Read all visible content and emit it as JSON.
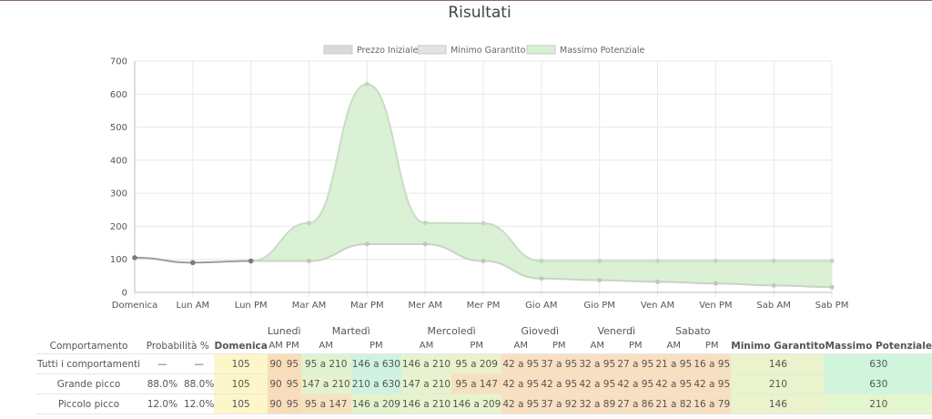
{
  "title": "Risultati",
  "legend": [
    {
      "label": "Prezzo Iniziale",
      "color": "#d9d9d9"
    },
    {
      "label": "Minimo Garantito",
      "color": "#e3e3e3"
    },
    {
      "label": "Massimo Potenziale",
      "color": "#d8f0d3"
    }
  ],
  "chart_data": {
    "type": "area",
    "x": [
      "Domenica",
      "Lun AM",
      "Lun PM",
      "Mar AM",
      "Mar PM",
      "Mer AM",
      "Mer PM",
      "Gio AM",
      "Gio PM",
      "Ven AM",
      "Ven PM",
      "Sab AM",
      "Sab PM"
    ],
    "ylim": [
      0,
      700
    ],
    "yticks": [
      0,
      100,
      200,
      300,
      400,
      500,
      600,
      700
    ],
    "grid": true,
    "legend_position": "top",
    "series": [
      {
        "name": "Prezzo Iniziale",
        "values": [
          105,
          90,
          95,
          null,
          null,
          null,
          null,
          null,
          null,
          null,
          null,
          null,
          null
        ]
      },
      {
        "name": "Minimo Garantito",
        "values": [
          null,
          null,
          95,
          95,
          146,
          146,
          95,
          42,
          37,
          32,
          27,
          21,
          16
        ]
      },
      {
        "name": "Massimo Potenziale",
        "values": [
          null,
          null,
          95,
          210,
          630,
          210,
          209,
          95,
          95,
          95,
          95,
          95,
          95
        ]
      }
    ]
  },
  "table": {
    "head_main": {
      "comportamento": "Comportamento",
      "probabilita": "Probabilità %",
      "domenica": "Domenica",
      "minimo": "Minimo Garantito",
      "massimo": "Massimo Potenziale"
    },
    "days": [
      "Lunedì",
      "Martedì",
      "Mercoledì",
      "Giovedì",
      "Venerdì",
      "Sabato"
    ],
    "am": "AM",
    "pm": "PM",
    "rows": [
      {
        "label": "Tutti i comportamenti",
        "p1": "—",
        "p2": "—",
        "dom": "105",
        "cells": [
          "90",
          "95",
          "95 a 210",
          "146 a 630",
          "146 a 210",
          "95 a 209",
          "42 a 95",
          "37 a 95",
          "32 a 95",
          "27 a 95",
          "21 a 95",
          "16 a 95"
        ],
        "min": "146",
        "max": "630"
      },
      {
        "label": "Grande picco",
        "p1": "88.0%",
        "p2": "88.0%",
        "dom": "105",
        "cells": [
          "90",
          "95",
          "147 a 210",
          "210 a 630",
          "147 a 210",
          "95 a 147",
          "42 a 95",
          "42 a 95",
          "42 a 95",
          "42 a 95",
          "42 a 95",
          "42 a 95"
        ],
        "min": "210",
        "max": "630"
      },
      {
        "label": "Piccolo picco",
        "p1": "12.0%",
        "p2": "12.0%",
        "dom": "105",
        "cells": [
          "90",
          "95",
          "95 a 147",
          "146 a 209",
          "146 a 210",
          "146 a 209",
          "42 a 95",
          "37 a 92",
          "32 a 89",
          "27 a 86",
          "21 a 82",
          "16 a 79"
        ],
        "min": "146",
        "max": "210"
      }
    ],
    "colors": {
      "domenica": "#fdf6c8",
      "monday": "#f9dcb8",
      "tuesday_am": "#dff3cf",
      "rows_cells": [
        [
          "#dff3cf",
          "#cff3e1",
          "#e7f3cd",
          "#ecf1c9"
        ],
        [
          "#e6f2cc",
          "#cff3e1",
          "#e7f3cd",
          "#f7e0be"
        ],
        [
          "#f7e2c0",
          "#e3f3cd",
          "#e7f3cd",
          "#e7f3cd"
        ]
      ],
      "late_week": "#f8dfc0",
      "minimo": "#eaf3cc",
      "massimo": [
        "#cff5dd",
        "#cff5dd",
        "#e3f6cd"
      ]
    }
  }
}
